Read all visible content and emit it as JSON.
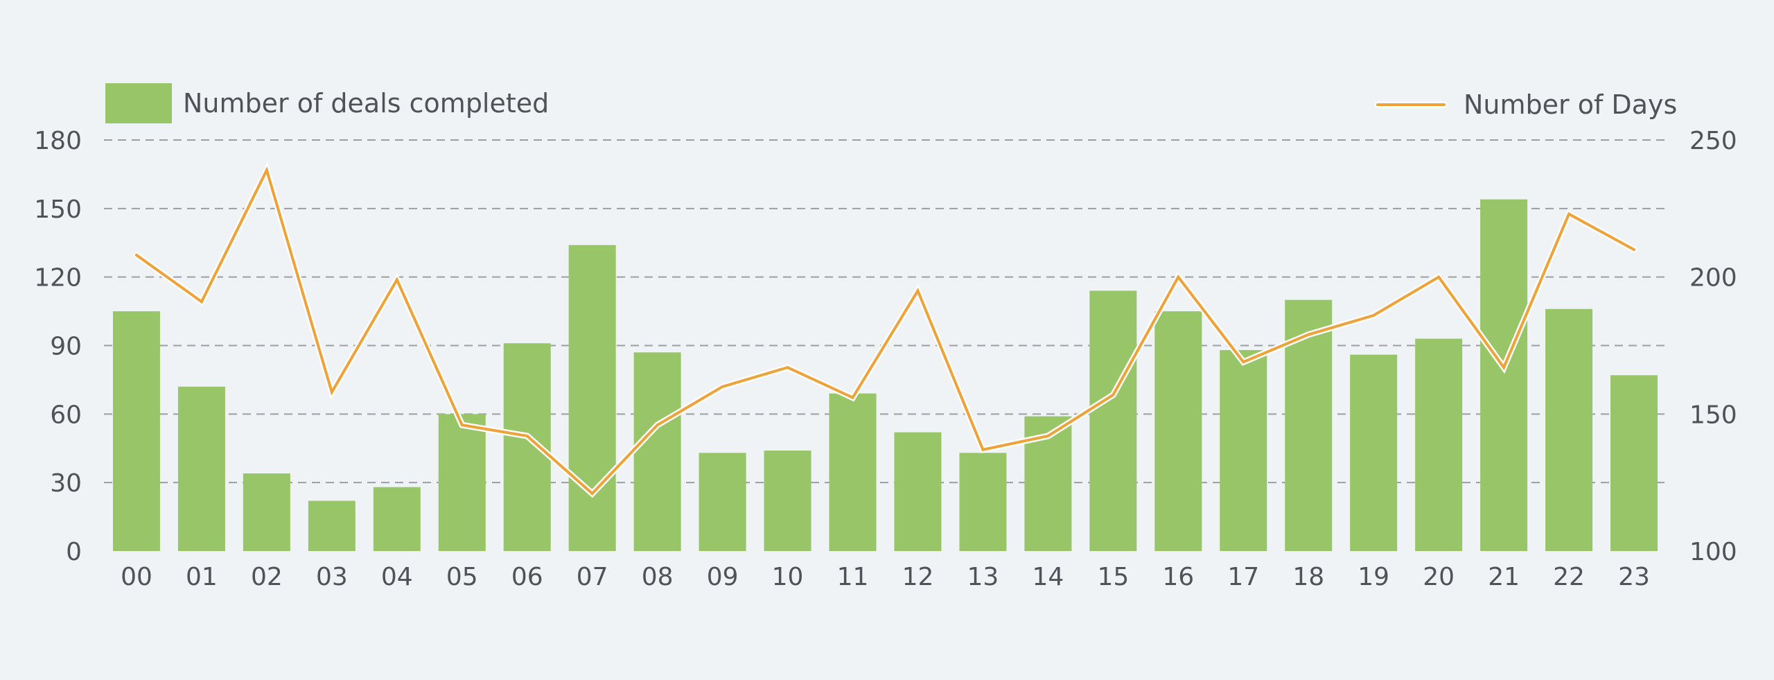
{
  "chart_data": {
    "type": "bar",
    "categories": [
      "00",
      "01",
      "02",
      "03",
      "04",
      "05",
      "06",
      "07",
      "08",
      "09",
      "10",
      "11",
      "12",
      "13",
      "14",
      "15",
      "16",
      "17",
      "18",
      "19",
      "20",
      "21",
      "22",
      "23"
    ],
    "series": [
      {
        "name": "Number of deals completed",
        "type": "bar",
        "axis": "left",
        "color": "#97c567",
        "values": [
          105,
          72,
          34,
          22,
          28,
          60,
          91,
          134,
          87,
          43,
          44,
          69,
          52,
          43,
          59,
          114,
          105,
          88,
          110,
          86,
          93,
          154,
          106,
          77
        ]
      },
      {
        "name": "Number of Days",
        "type": "line",
        "axis": "right",
        "color": "#eda23a",
        "values": [
          208,
          191,
          239,
          158,
          199,
          146,
          142,
          121,
          146,
          160,
          167,
          156,
          195,
          137,
          142,
          157,
          200,
          169,
          179,
          186,
          200,
          167,
          223,
          210
        ]
      }
    ],
    "y_left": {
      "ylim": [
        0,
        180
      ],
      "ticks": [
        0,
        30,
        60,
        90,
        120,
        150,
        180
      ]
    },
    "y_right": {
      "ylim": [
        100,
        250
      ],
      "ticks": [
        100,
        150,
        200,
        250
      ]
    },
    "grid": "horizontal-dashed",
    "legend": {
      "left": "top-left",
      "right": "top-right"
    },
    "background": "#eff3f6",
    "grid_color": "#9a9fa5",
    "text_color": "#4f5357"
  }
}
